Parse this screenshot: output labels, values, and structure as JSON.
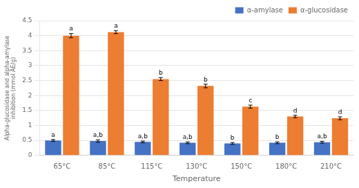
{
  "chart_data": {
    "type": "bar",
    "categories": [
      "65°C",
      "85°C",
      "115°C",
      "130°C",
      "150°C",
      "180°C",
      "210°C"
    ],
    "series": [
      {
        "name": "α-amylase",
        "color": "#4472c4",
        "values": [
          0.5,
          0.48,
          0.45,
          0.42,
          0.4,
          0.42,
          0.44
        ],
        "errors": [
          0.03,
          0.04,
          0.03,
          0.03,
          0.03,
          0.03,
          0.03
        ],
        "annotations": [
          "a",
          "a,b",
          "a,b",
          "a,b",
          "b",
          "b",
          "a,b"
        ]
      },
      {
        "name": "α-glucosidase",
        "color": "#ed7d31",
        "values": [
          4.0,
          4.12,
          2.55,
          2.32,
          1.63,
          1.3,
          1.24
        ],
        "errors": [
          0.07,
          0.05,
          0.05,
          0.06,
          0.05,
          0.04,
          0.05
        ],
        "annotations": [
          "a",
          "a",
          "b",
          "b",
          "c",
          "d",
          "d"
        ]
      }
    ],
    "xlabel": "Temperature",
    "ylabel": "Alpha-glucosidase and alpha-amylase\ninhibition (mmol AE/g)",
    "ylim": [
      0,
      4.5
    ],
    "yticks": [
      0,
      0.5,
      1,
      1.5,
      2,
      2.5,
      3,
      3.5,
      4,
      4.5
    ],
    "grid": true,
    "legend": "upper right"
  }
}
